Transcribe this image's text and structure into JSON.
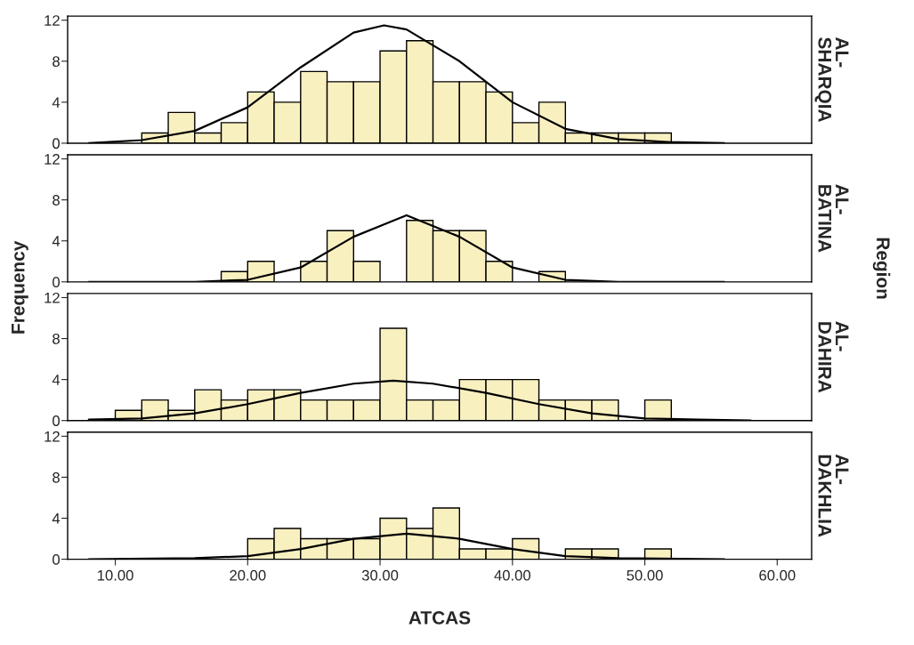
{
  "chart_data": [
    {
      "type": "histogram",
      "ylabel": "Frequency",
      "y2label": "AL-\nSHARQIA",
      "annotations": [
        "Region"
      ],
      "xlim": [
        6.4,
        62.6
      ],
      "ylim": [
        0,
        12.4
      ],
      "yticks": [
        0,
        4,
        8,
        12
      ],
      "tick_labels": "y",
      "grid": false,
      "legend": false,
      "series": [
        {
          "color": "#f9f0c0",
          "bins": [
            10,
            12,
            14,
            16,
            18,
            20,
            22,
            24,
            26,
            28,
            30,
            32,
            34,
            36,
            38,
            40,
            42,
            44,
            46,
            48,
            50,
            52
          ],
          "values": [
            0,
            1,
            3,
            1,
            2,
            5,
            4,
            7,
            6,
            6,
            9,
            10,
            6,
            6,
            5,
            2,
            4,
            1,
            1,
            1,
            1
          ]
        },
        {
          "type": "line",
          "color": "#000000",
          "x": [
            8,
            12,
            16,
            20,
            24,
            28,
            30.3,
            32,
            36,
            40,
            44,
            48,
            52,
            56
          ],
          "values": [
            0,
            0.3,
            1.2,
            3.5,
            7.4,
            10.8,
            11.5,
            11.1,
            8.0,
            4.0,
            1.4,
            0.4,
            0.1,
            0
          ]
        }
      ]
    },
    {
      "type": "histogram",
      "y2label": "AL-\nBATINA",
      "xlim": [
        6.4,
        62.6
      ],
      "ylim": [
        0,
        12.4
      ],
      "yticks": [
        0,
        4,
        8,
        12
      ],
      "tick_labels": "y",
      "grid": false,
      "legend": false,
      "series": [
        {
          "color": "#f9f0c0",
          "bins": [
            10,
            12,
            14,
            16,
            18,
            20,
            22,
            24,
            26,
            28,
            30,
            32,
            34,
            36,
            38,
            40,
            42,
            44,
            46,
            48,
            50,
            52
          ],
          "values": [
            0,
            0,
            0,
            0,
            1,
            2,
            0,
            2,
            5,
            2,
            0,
            6,
            5,
            5,
            2,
            0,
            1,
            0,
            0,
            0,
            0
          ]
        },
        {
          "type": "line",
          "color": "#000000",
          "x": [
            8,
            16,
            20,
            24,
            28,
            32,
            36,
            40,
            44,
            48,
            56
          ],
          "values": [
            0,
            0,
            0.2,
            1.4,
            4.4,
            6.5,
            4.4,
            1.4,
            0.2,
            0,
            0
          ]
        }
      ]
    },
    {
      "type": "histogram",
      "y2label": "AL-\nDAHIRA",
      "xlim": [
        6.4,
        62.6
      ],
      "ylim": [
        0,
        12.4
      ],
      "yticks": [
        0,
        4,
        8,
        12
      ],
      "tick_labels": "y",
      "grid": false,
      "legend": false,
      "series": [
        {
          "color": "#f9f0c0",
          "bins": [
            10,
            12,
            14,
            16,
            18,
            20,
            22,
            24,
            26,
            28,
            30,
            32,
            34,
            36,
            38,
            40,
            42,
            44,
            46,
            48,
            50,
            52
          ],
          "values": [
            1,
            2,
            1,
            3,
            2,
            3,
            3,
            2,
            2,
            2,
            9,
            2,
            2,
            4,
            4,
            4,
            2,
            2,
            2,
            0,
            2
          ]
        },
        {
          "type": "line",
          "color": "#000000",
          "x": [
            8,
            12,
            16,
            20,
            24,
            28,
            31,
            34,
            38,
            42,
            46,
            50,
            54,
            58
          ],
          "values": [
            0.1,
            0.2,
            0.7,
            1.6,
            2.7,
            3.6,
            3.9,
            3.6,
            2.7,
            1.6,
            0.7,
            0.2,
            0.1,
            0
          ]
        }
      ]
    },
    {
      "type": "histogram",
      "y2label": "AL-\nDAKHLIA",
      "xlabel": "ATCAS",
      "xlim": [
        6.4,
        62.6
      ],
      "ylim": [
        0,
        12.4
      ],
      "xticks": [
        {
          "value": 10,
          "label": "10.00"
        },
        {
          "value": 20,
          "label": "20.00"
        },
        {
          "value": 30,
          "label": "30.00"
        },
        {
          "value": 40,
          "label": "40.00"
        },
        {
          "value": 50,
          "label": "50.00"
        },
        {
          "value": 60,
          "label": "60.00"
        }
      ],
      "yticks": [
        0,
        4,
        8,
        12
      ],
      "grid": false,
      "legend": false,
      "series": [
        {
          "color": "#f9f0c0",
          "bins": [
            10,
            12,
            14,
            16,
            18,
            20,
            22,
            24,
            26,
            28,
            30,
            32,
            34,
            36,
            38,
            40,
            42,
            44,
            46,
            48,
            50,
            52
          ],
          "values": [
            0,
            0,
            0,
            0,
            0,
            2,
            3,
            2,
            2,
            2,
            4,
            3,
            5,
            1,
            1,
            2,
            0,
            1,
            1,
            0,
            1
          ]
        },
        {
          "type": "line",
          "color": "#000000",
          "x": [
            8,
            16,
            20,
            24,
            28,
            32,
            36,
            40,
            44,
            48,
            56
          ],
          "values": [
            0,
            0.1,
            0.3,
            1.0,
            2.0,
            2.5,
            2.0,
            1.0,
            0.3,
            0.1,
            0
          ]
        }
      ]
    }
  ]
}
